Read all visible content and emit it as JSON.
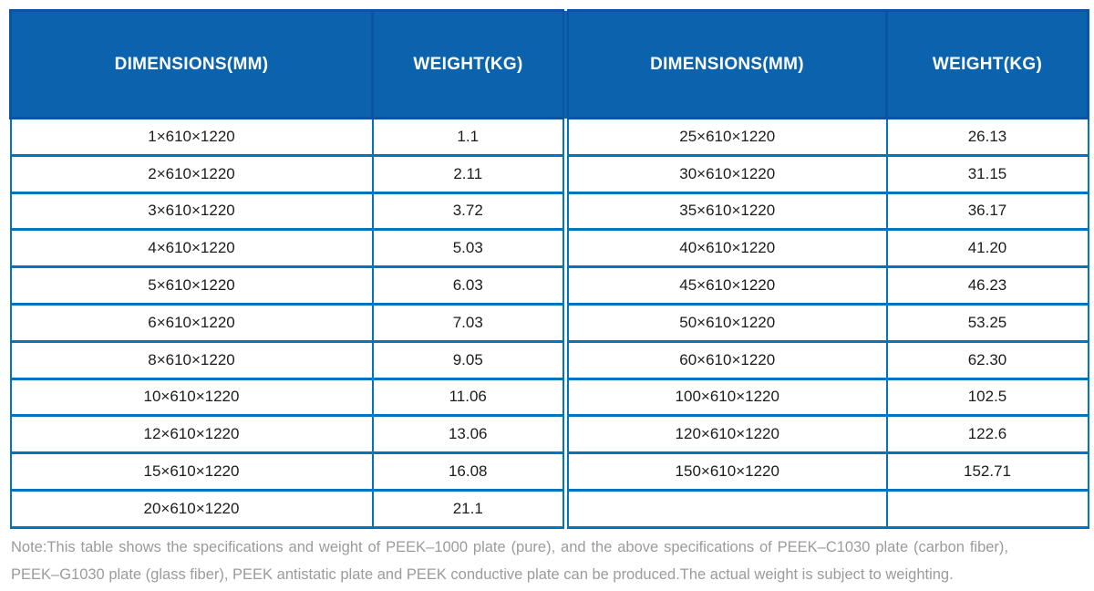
{
  "colors": {
    "header_background": "#0B63AE",
    "header_border": "#0A55A3",
    "header_text": "#FFFFFF",
    "grid_border": "#0074BE",
    "cell_text": "#1C1C1C",
    "note_text": "#9B9B9B"
  },
  "table": {
    "headers": [
      "DIMENSIONS(MM)",
      "WEIGHT(KG)",
      "DIMENSIONS(MM)",
      "WEIGHT(KG)"
    ],
    "rows": [
      [
        "1×610×1220",
        "1.1",
        "25×610×1220",
        "26.13"
      ],
      [
        "2×610×1220",
        "2.11",
        "30×610×1220",
        "31.15"
      ],
      [
        "3×610×1220",
        "3.72",
        "35×610×1220",
        "36.17"
      ],
      [
        "4×610×1220",
        "5.03",
        "40×610×1220",
        "41.20"
      ],
      [
        "5×610×1220",
        "6.03",
        "45×610×1220",
        "46.23"
      ],
      [
        "6×610×1220",
        "7.03",
        "50×610×1220",
        "53.25"
      ],
      [
        "8×610×1220",
        "9.05",
        "60×610×1220",
        "62.30"
      ],
      [
        "10×610×1220",
        "11.06",
        "100×610×1220",
        "102.5"
      ],
      [
        "12×610×1220",
        "13.06",
        "120×610×1220",
        "122.6"
      ],
      [
        "15×610×1220",
        "16.08",
        "150×610×1220",
        "152.71"
      ],
      [
        "20×610×1220",
        "21.1",
        "",
        ""
      ]
    ]
  },
  "note": "Note:This table shows the specifications and weight of PEEK–1000 plate (pure), and the above specifications of PEEK–C1030 plate (carbon fiber), PEEK–G1030 plate (glass fiber), PEEK antistatic plate and PEEK conductive plate can be produced.The actual weight is subject to weighting."
}
